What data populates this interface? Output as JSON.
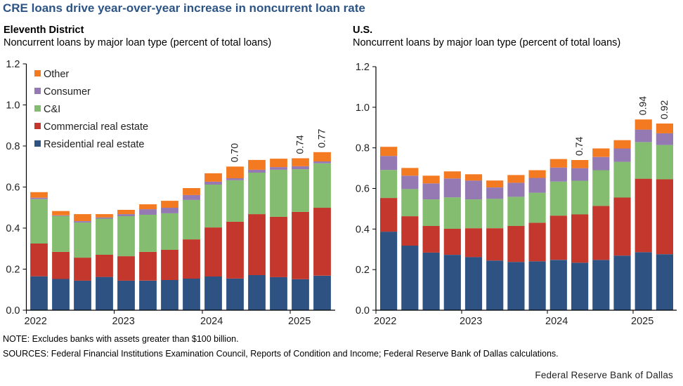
{
  "title": "CRE loans drive year-over-year increase in noncurrent loan rate",
  "footer": {
    "note": "NOTE:  Excludes  banks  with  assets greater than $100 billion.",
    "sources": "SOURCES:  Federal Financial Institutions  Examination  Council,  Reports of Condition and Income;  Federal Reserve Bank of Dallas calculations.",
    "brand": "Federal  Reserve  Bank of Dallas"
  },
  "colors": {
    "title": "#2d5486",
    "Residential real estate": "#2e5382",
    "Commercial real estate": "#c3372c",
    "C&I": "#84bd6f",
    "Consumer": "#9479b3",
    "Other": "#f47a22"
  },
  "chart_data": [
    {
      "type": "bar",
      "stacked": true,
      "panel_title": "Eleventh District",
      "title": "Noncurrent loans by major loan type (percent of total loans)",
      "xlabel": "",
      "ylabel": "",
      "ylim": [
        0,
        1.2
      ],
      "yticks": [
        "0.0",
        "0.2",
        "0.4",
        "0.6",
        "0.8",
        "1.0",
        "1.2"
      ],
      "xticks": [
        "2022",
        "2023",
        "2024",
        "2025"
      ],
      "legend": [
        "Other",
        "Consumer",
        "C&I",
        "Commercial real estate",
        "Residential real estate"
      ],
      "legend_position": "top-left",
      "categories": [
        "2022Q1",
        "2022Q2",
        "2022Q3",
        "2022Q4",
        "2023Q1",
        "2023Q2",
        "2023Q3",
        "2023Q4",
        "2024Q1",
        "2024Q2",
        "2024Q3",
        "2024Q4",
        "2025Q1",
        "2025Q2"
      ],
      "series": [
        {
          "name": "Residential real estate",
          "values": [
            0.165,
            0.152,
            0.144,
            0.162,
            0.144,
            0.144,
            0.147,
            0.154,
            0.164,
            0.154,
            0.171,
            0.161,
            0.151,
            0.168
          ]
        },
        {
          "name": "Commercial real estate",
          "values": [
            0.16,
            0.132,
            0.112,
            0.108,
            0.119,
            0.14,
            0.147,
            0.191,
            0.239,
            0.277,
            0.297,
            0.294,
            0.328,
            0.331
          ]
        },
        {
          "name": "C&I",
          "values": [
            0.216,
            0.175,
            0.171,
            0.176,
            0.195,
            0.181,
            0.178,
            0.192,
            0.209,
            0.202,
            0.202,
            0.229,
            0.208,
            0.216
          ]
        },
        {
          "name": "Consumer",
          "values": [
            0.007,
            0.003,
            0.007,
            0.006,
            0.01,
            0.027,
            0.027,
            0.024,
            0.014,
            0.01,
            0.014,
            0.013,
            0.014,
            0.01
          ]
        },
        {
          "name": "Other",
          "values": [
            0.027,
            0.021,
            0.034,
            0.016,
            0.021,
            0.024,
            0.034,
            0.034,
            0.041,
            0.057,
            0.048,
            0.041,
            0.039,
            0.045
          ]
        }
      ],
      "totals": [
        0.575,
        0.483,
        0.468,
        0.468,
        0.489,
        0.516,
        0.533,
        0.595,
        0.667,
        0.7,
        0.732,
        0.738,
        0.74,
        0.77
      ],
      "annotations": [
        {
          "index": 9,
          "label": "0.70"
        },
        {
          "index": 12,
          "label": "0.74"
        },
        {
          "index": 13,
          "label": "0.77"
        }
      ]
    },
    {
      "type": "bar",
      "stacked": true,
      "panel_title": "U.S.",
      "title": "Noncurrent loans by major loan type (percent of total loans)",
      "xlabel": "",
      "ylabel": "",
      "ylim": [
        0,
        1.2
      ],
      "yticks": [
        "0.0",
        "0.2",
        "0.4",
        "0.6",
        "0.8",
        "1.0",
        "1.2"
      ],
      "xticks": [
        "2022",
        "2023",
        "2024",
        "2025"
      ],
      "legend": [],
      "categories": [
        "2022Q1",
        "2022Q2",
        "2022Q3",
        "2022Q4",
        "2023Q1",
        "2023Q2",
        "2023Q3",
        "2023Q4",
        "2024Q1",
        "2024Q2",
        "2024Q3",
        "2024Q4",
        "2025Q1",
        "2025Q2"
      ],
      "series": [
        {
          "name": "Residential real estate",
          "values": [
            0.387,
            0.318,
            0.284,
            0.273,
            0.262,
            0.245,
            0.238,
            0.241,
            0.248,
            0.234,
            0.248,
            0.269,
            0.286,
            0.276
          ]
        },
        {
          "name": "Commercial real estate",
          "values": [
            0.166,
            0.145,
            0.131,
            0.128,
            0.142,
            0.159,
            0.177,
            0.19,
            0.218,
            0.238,
            0.266,
            0.286,
            0.362,
            0.369
          ]
        },
        {
          "name": "C&I",
          "values": [
            0.138,
            0.134,
            0.131,
            0.155,
            0.142,
            0.145,
            0.144,
            0.148,
            0.168,
            0.166,
            0.176,
            0.176,
            0.18,
            0.169
          ]
        },
        {
          "name": "Consumer",
          "values": [
            0.069,
            0.066,
            0.079,
            0.093,
            0.093,
            0.056,
            0.069,
            0.073,
            0.069,
            0.062,
            0.065,
            0.066,
            0.062,
            0.058
          ]
        },
        {
          "name": "Other",
          "values": [
            0.045,
            0.038,
            0.038,
            0.035,
            0.031,
            0.034,
            0.038,
            0.038,
            0.042,
            0.04,
            0.042,
            0.041,
            0.05,
            0.048
          ]
        }
      ],
      "totals": [
        0.805,
        0.701,
        0.663,
        0.684,
        0.67,
        0.639,
        0.666,
        0.69,
        0.745,
        0.74,
        0.797,
        0.838,
        0.94,
        0.92
      ],
      "annotations": [
        {
          "index": 9,
          "label": "0.74"
        },
        {
          "index": 12,
          "label": "0.94"
        },
        {
          "index": 13,
          "label": "0.92"
        }
      ]
    }
  ]
}
